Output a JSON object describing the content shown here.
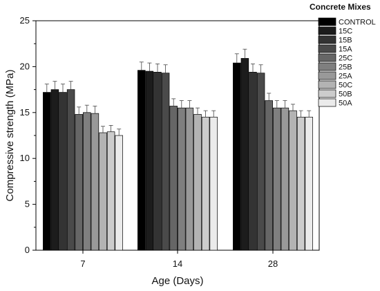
{
  "chart_data": {
    "type": "bar",
    "xlabel": "Age (Days)",
    "ylabel": "Compressive strength (MPa)",
    "ylim": [
      0,
      25
    ],
    "yticks": [
      0,
      5,
      10,
      15,
      20,
      25
    ],
    "categories": [
      "7",
      "14",
      "28"
    ],
    "legend": {
      "title": "Concrete Mixes",
      "placement": "right"
    },
    "grid": false,
    "series": [
      {
        "name": "CONTROL",
        "color": "#000000",
        "values": [
          17.2,
          19.6,
          20.4
        ],
        "errors": [
          0.9,
          0.9,
          1.0
        ]
      },
      {
        "name": "15C",
        "color": "#1c1c1c",
        "values": [
          17.5,
          19.5,
          20.9
        ],
        "errors": [
          0.9,
          0.9,
          1.0
        ]
      },
      {
        "name": "15B",
        "color": "#333333",
        "values": [
          17.2,
          19.4,
          19.4
        ],
        "errors": [
          0.9,
          0.9,
          0.9
        ]
      },
      {
        "name": "15A",
        "color": "#4a4a4a",
        "values": [
          17.5,
          19.3,
          19.3
        ],
        "errors": [
          0.9,
          0.9,
          0.9
        ]
      },
      {
        "name": "25C",
        "color": "#666666",
        "values": [
          14.8,
          15.7,
          16.3
        ],
        "errors": [
          0.8,
          0.8,
          0.8
        ]
      },
      {
        "name": "25B",
        "color": "#7f7f7f",
        "values": [
          15.0,
          15.5,
          15.5
        ],
        "errors": [
          0.8,
          0.8,
          0.8
        ]
      },
      {
        "name": "25A",
        "color": "#999999",
        "values": [
          14.9,
          15.5,
          15.5
        ],
        "errors": [
          0.8,
          0.8,
          0.8
        ]
      },
      {
        "name": "50C",
        "color": "#b3b3b3",
        "values": [
          12.8,
          14.8,
          15.2
        ],
        "errors": [
          0.7,
          0.7,
          0.7
        ]
      },
      {
        "name": "50B",
        "color": "#cccccc",
        "values": [
          12.9,
          14.5,
          14.5
        ],
        "errors": [
          0.7,
          0.7,
          0.7
        ]
      },
      {
        "name": "50A",
        "color": "#ebebeb",
        "values": [
          12.5,
          14.5,
          14.5
        ],
        "errors": [
          0.7,
          0.7,
          0.7
        ]
      }
    ]
  }
}
